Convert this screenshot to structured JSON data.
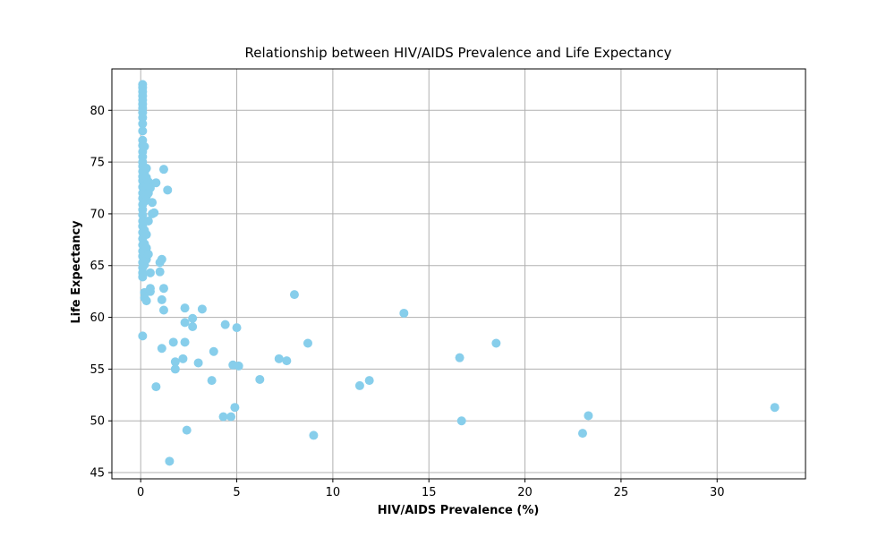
{
  "chart_data": {
    "type": "scatter",
    "title": "Relationship between HIV/AIDS Prevalence and Life Expectancy",
    "xlabel": "HIV/AIDS Prevalence (%)",
    "ylabel": "Life Expectancy",
    "xlim": [
      -1.5,
      34.6
    ],
    "ylim": [
      44.4,
      84.0
    ],
    "x_ticks": [
      0,
      5,
      10,
      15,
      20,
      25,
      30
    ],
    "y_ticks": [
      45,
      50,
      55,
      60,
      65,
      70,
      75,
      80
    ],
    "grid": true,
    "marker_color": "#87CEEB",
    "series": [
      {
        "points": [
          [
            0.1,
            82.5
          ],
          [
            0.1,
            82.2
          ],
          [
            0.1,
            81.8
          ],
          [
            0.1,
            81.4
          ],
          [
            0.1,
            81.0
          ],
          [
            0.1,
            80.6
          ],
          [
            0.1,
            80.2
          ],
          [
            0.1,
            79.8
          ],
          [
            0.1,
            79.3
          ],
          [
            0.1,
            78.7
          ],
          [
            0.1,
            78.0
          ],
          [
            0.1,
            77.1
          ],
          [
            0.1,
            76.6
          ],
          [
            0.1,
            76.0
          ],
          [
            0.1,
            75.5
          ],
          [
            0.1,
            75.0
          ],
          [
            0.1,
            74.6
          ],
          [
            0.1,
            74.1
          ],
          [
            0.1,
            73.6
          ],
          [
            0.1,
            73.2
          ],
          [
            0.1,
            72.6
          ],
          [
            0.1,
            72.0
          ],
          [
            0.1,
            71.5
          ],
          [
            0.1,
            70.9
          ],
          [
            0.1,
            70.4
          ],
          [
            0.1,
            69.9
          ],
          [
            0.1,
            69.3
          ],
          [
            0.1,
            68.8
          ],
          [
            0.1,
            68.2
          ],
          [
            0.1,
            67.6
          ],
          [
            0.1,
            67.0
          ],
          [
            0.1,
            66.4
          ],
          [
            0.1,
            65.9
          ],
          [
            0.1,
            65.3
          ],
          [
            0.1,
            64.8
          ],
          [
            0.1,
            64.3
          ],
          [
            0.1,
            63.9
          ],
          [
            0.1,
            58.2
          ],
          [
            0.2,
            76.5
          ],
          [
            0.2,
            74.0
          ],
          [
            0.2,
            73.1
          ],
          [
            0.2,
            72.4
          ],
          [
            0.2,
            71.2
          ],
          [
            0.2,
            68.4
          ],
          [
            0.2,
            67.1
          ],
          [
            0.2,
            66.2
          ],
          [
            0.2,
            65.1
          ],
          [
            0.2,
            62.4
          ],
          [
            0.2,
            61.9
          ],
          [
            0.3,
            74.4
          ],
          [
            0.3,
            73.5
          ],
          [
            0.3,
            72.8
          ],
          [
            0.3,
            71.7
          ],
          [
            0.3,
            68.0
          ],
          [
            0.3,
            66.7
          ],
          [
            0.3,
            65.6
          ],
          [
            0.3,
            61.6
          ],
          [
            0.4,
            73.1
          ],
          [
            0.4,
            72.0
          ],
          [
            0.4,
            69.3
          ],
          [
            0.4,
            66.1
          ],
          [
            0.5,
            72.5
          ],
          [
            0.5,
            64.3
          ],
          [
            0.5,
            62.8
          ],
          [
            0.5,
            62.5
          ],
          [
            0.6,
            71.1
          ],
          [
            0.6,
            70.0
          ],
          [
            0.7,
            70.1
          ],
          [
            0.8,
            73.0
          ],
          [
            0.8,
            53.3
          ],
          [
            1.0,
            65.3
          ],
          [
            1.0,
            64.4
          ],
          [
            1.1,
            65.6
          ],
          [
            1.1,
            57.0
          ],
          [
            1.2,
            74.3
          ],
          [
            1.2,
            62.8
          ],
          [
            1.1,
            61.7
          ],
          [
            1.2,
            60.7
          ],
          [
            1.4,
            72.3
          ],
          [
            1.5,
            46.1
          ],
          [
            1.7,
            57.6
          ],
          [
            1.8,
            55.7
          ],
          [
            1.8,
            55.0
          ],
          [
            2.2,
            56.0
          ],
          [
            2.3,
            60.9
          ],
          [
            2.3,
            59.5
          ],
          [
            2.3,
            57.6
          ],
          [
            2.4,
            49.1
          ],
          [
            2.7,
            59.9
          ],
          [
            2.7,
            59.1
          ],
          [
            3.0,
            55.6
          ],
          [
            3.2,
            60.8
          ],
          [
            3.7,
            53.9
          ],
          [
            3.8,
            56.7
          ],
          [
            4.3,
            50.4
          ],
          [
            4.4,
            59.3
          ],
          [
            4.7,
            50.4
          ],
          [
            4.8,
            55.4
          ],
          [
            4.9,
            51.3
          ],
          [
            5.0,
            59.0
          ],
          [
            5.1,
            55.3
          ],
          [
            6.2,
            54.0
          ],
          [
            7.2,
            56.0
          ],
          [
            7.6,
            55.8
          ],
          [
            8.0,
            62.2
          ],
          [
            8.7,
            57.5
          ],
          [
            9.0,
            48.6
          ],
          [
            11.4,
            53.4
          ],
          [
            11.9,
            53.9
          ],
          [
            13.7,
            60.4
          ],
          [
            16.6,
            56.1
          ],
          [
            16.7,
            50.0
          ],
          [
            18.5,
            57.5
          ],
          [
            23.0,
            48.8
          ],
          [
            23.3,
            50.5
          ],
          [
            33.0,
            51.3
          ]
        ]
      }
    ]
  }
}
